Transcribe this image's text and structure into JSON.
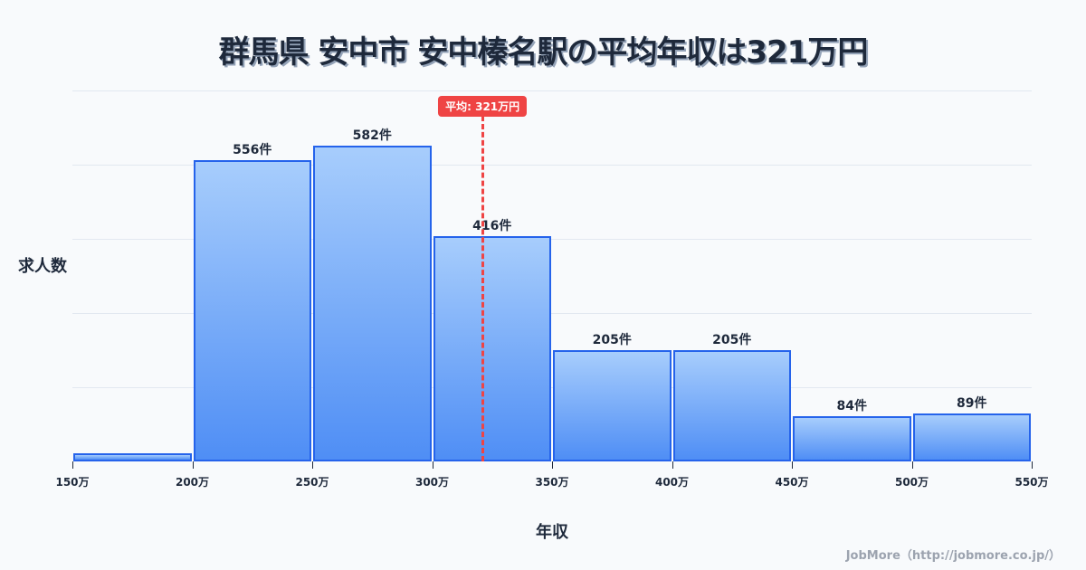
{
  "title": "群馬県 安中市 安中榛名駅の平均年収は321万円",
  "average_badge": "平均: 321万円",
  "footer": "JobMore（http://jobmore.co.jp/）",
  "colors": {
    "bar_fill_top": "#a7cdfc",
    "bar_fill_bottom": "#4f8ef5",
    "bar_border": "#2563eb",
    "average_line": "#ef4444",
    "text": "#1e293b"
  },
  "chart_data": {
    "type": "bar",
    "title": "群馬県 安中市 安中榛名駅の平均年収は321万円",
    "xlabel": "年収",
    "ylabel": "求人数",
    "categories": [
      "150万-200万",
      "200万-250万",
      "250万-300万",
      "300万-350万",
      "350万-400万",
      "400万-450万",
      "450万-500万",
      "500万-550万"
    ],
    "values": [
      15,
      556,
      582,
      416,
      205,
      205,
      84,
      89
    ],
    "bar_labels": [
      "",
      "556件",
      "582件",
      "416件",
      "205件",
      "205件",
      "84件",
      "89件"
    ],
    "x_ticks": [
      "150万",
      "200万",
      "250万",
      "300万",
      "350万",
      "400万",
      "450万",
      "500万",
      "550万"
    ],
    "x_range": [
      150,
      550
    ],
    "ylim": [
      0,
      684
    ],
    "grid": true,
    "y_tick_labels_visible": false,
    "annotations": [
      {
        "type": "vline",
        "x": 321,
        "label": "平均: 321万円"
      }
    ]
  }
}
